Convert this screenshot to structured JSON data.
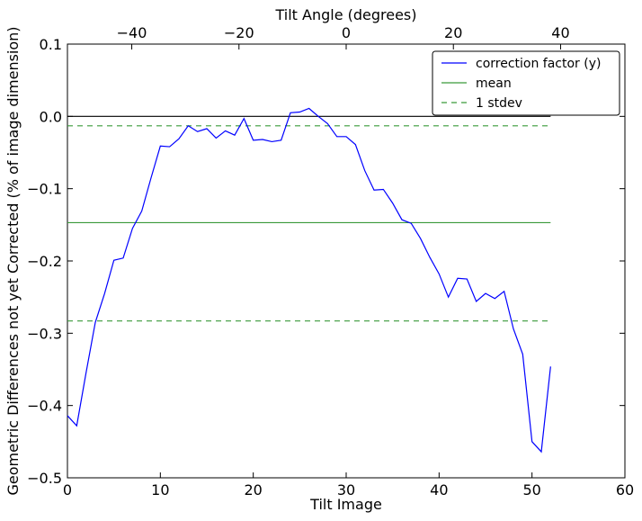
{
  "chart_data": {
    "type": "line",
    "xlabel": "Tilt Image",
    "ylabel": "Geometric Differences not yet Corrected (% of image dimension)",
    "top_xlabel": "Tilt Angle (degrees)",
    "xlim": [
      0,
      60
    ],
    "ylim": [
      -0.5,
      0.1
    ],
    "top_xlim": [
      -52,
      52
    ],
    "x_ticks": [
      0,
      10,
      20,
      30,
      40,
      50,
      60
    ],
    "y_ticks": [
      0.1,
      0.0,
      -0.1,
      -0.2,
      -0.3,
      -0.4,
      -0.5
    ],
    "y_tick_labels": [
      "0.1",
      "0.0",
      "−0.1",
      "−0.2",
      "−0.3",
      "−0.4",
      "−0.5"
    ],
    "top_ticks": [
      -40,
      -20,
      0,
      20,
      40
    ],
    "top_tick_labels": [
      "−40",
      "−20",
      "0",
      "20",
      "40"
    ],
    "grid": false,
    "legend_position": "top-right",
    "series": [
      {
        "name": "correction factor (y)",
        "color": "#0000ff",
        "style": "solid",
        "x": [
          0,
          1,
          2,
          3,
          4,
          5,
          6,
          7,
          8,
          9,
          10,
          11,
          12,
          13,
          14,
          15,
          16,
          17,
          18,
          19,
          20,
          21,
          22,
          23,
          24,
          25,
          26,
          27,
          28,
          29,
          30,
          31,
          32,
          33,
          34,
          35,
          36,
          37,
          38,
          39,
          40,
          41,
          42,
          43,
          44,
          45,
          46,
          47,
          48,
          49,
          50,
          51,
          52
        ],
        "y": [
          -0.414,
          -0.428,
          -0.355,
          -0.285,
          -0.245,
          -0.199,
          -0.196,
          -0.155,
          -0.131,
          -0.085,
          -0.041,
          -0.042,
          -0.031,
          -0.013,
          -0.021,
          -0.017,
          -0.03,
          -0.02,
          -0.026,
          -0.003,
          -0.033,
          -0.032,
          -0.035,
          -0.033,
          0.005,
          0.006,
          0.011,
          0.0,
          -0.01,
          -0.028,
          -0.028,
          -0.039,
          -0.075,
          -0.102,
          -0.101,
          -0.12,
          -0.143,
          -0.148,
          -0.169,
          -0.195,
          -0.218,
          -0.25,
          -0.224,
          -0.225,
          -0.256,
          -0.245,
          -0.252,
          -0.242,
          -0.294,
          -0.329,
          -0.45,
          -0.464,
          -0.346
        ]
      },
      {
        "name": "mean",
        "color": "#3a9a3a",
        "style": "solid",
        "x": [
          0,
          52
        ],
        "y": [
          -0.147,
          -0.147
        ]
      },
      {
        "name": "1 stdev",
        "color": "#3a9a3a",
        "style": "dashed",
        "x": [
          0,
          52
        ],
        "y": [
          -0.013,
          -0.013
        ]
      },
      {
        "name": "",
        "color": "#3a9a3a",
        "style": "dashed",
        "x": [
          0,
          52
        ],
        "y": [
          -0.283,
          -0.283
        ]
      },
      {
        "name": "",
        "color": "#000000",
        "style": "solid",
        "x": [
          0,
          52
        ],
        "y": [
          0.0,
          0.0
        ]
      }
    ],
    "legend": [
      "correction factor (y)",
      "mean",
      "1 stdev"
    ]
  }
}
